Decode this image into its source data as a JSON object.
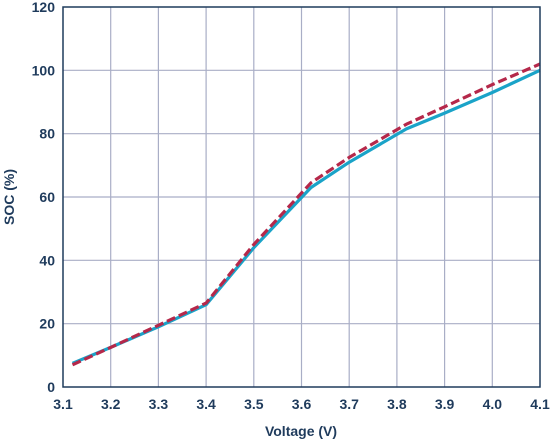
{
  "chart_data": {
    "type": "line",
    "title": "",
    "xlabel": "Voltage (V)",
    "ylabel": "SOC (%)",
    "xlim": [
      3.1,
      4.1
    ],
    "ylim": [
      0,
      120
    ],
    "x_ticks": [
      "3.1",
      "3.2",
      "3.3",
      "3.4",
      "3.5",
      "3.6",
      "3.7",
      "3.8",
      "3.9",
      "4.0",
      "4.1"
    ],
    "y_ticks": [
      "0",
      "20",
      "40",
      "60",
      "80",
      "100",
      "120"
    ],
    "grid": true,
    "legend": "none",
    "series": [
      {
        "color": "#1aa3c8",
        "style": "solid",
        "points": [
          {
            "x": 3.12,
            "y": 7.5
          },
          {
            "x": 3.2,
            "y": 12.5
          },
          {
            "x": 3.3,
            "y": 19
          },
          {
            "x": 3.4,
            "y": 26
          },
          {
            "x": 3.5,
            "y": 44
          },
          {
            "x": 3.62,
            "y": 63
          },
          {
            "x": 3.7,
            "y": 71
          },
          {
            "x": 3.82,
            "y": 81.5
          },
          {
            "x": 3.9,
            "y": 86.5
          },
          {
            "x": 4.0,
            "y": 93
          },
          {
            "x": 4.1,
            "y": 100
          }
        ]
      },
      {
        "color": "#b5284a",
        "style": "dashed",
        "points": [
          {
            "x": 3.12,
            "y": 7
          },
          {
            "x": 3.2,
            "y": 12.5
          },
          {
            "x": 3.3,
            "y": 19.5
          },
          {
            "x": 3.4,
            "y": 26.5
          },
          {
            "x": 3.5,
            "y": 45
          },
          {
            "x": 3.62,
            "y": 64.5
          },
          {
            "x": 3.7,
            "y": 72.5
          },
          {
            "x": 3.82,
            "y": 83
          },
          {
            "x": 3.9,
            "y": 88.5
          },
          {
            "x": 4.0,
            "y": 95.5
          },
          {
            "x": 4.1,
            "y": 102
          }
        ]
      }
    ]
  }
}
